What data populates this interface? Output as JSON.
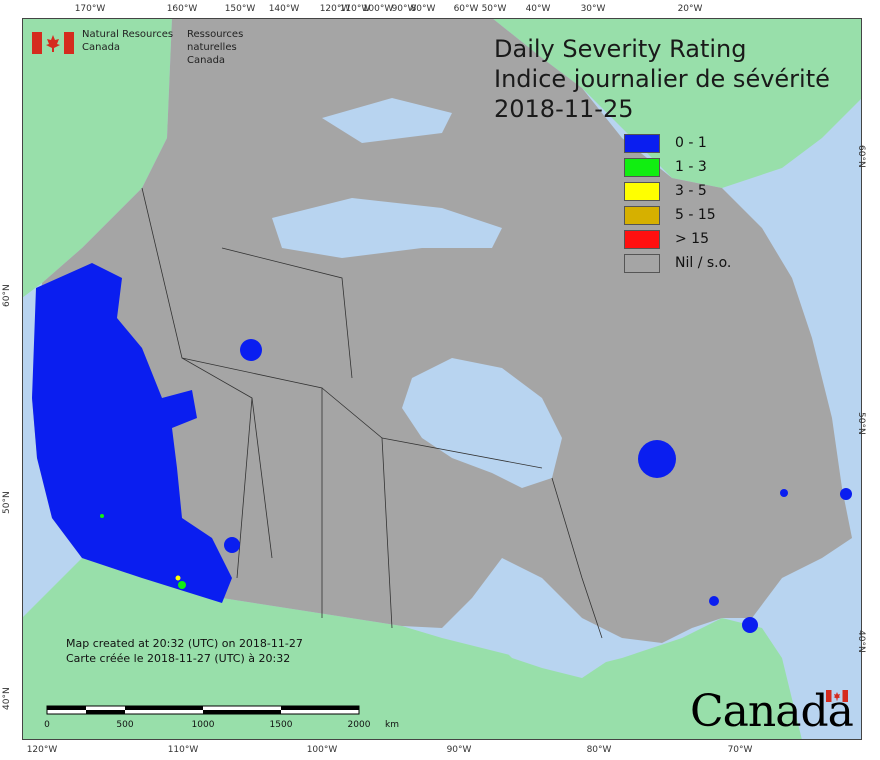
{
  "title": {
    "line1": "Daily Severity Rating",
    "line2": "Indice journalier de sévérité",
    "date": "2018-11-25"
  },
  "agency": {
    "en_line1": "Natural Resources",
    "en_line2": "Canada",
    "fr_line1": "Ressources naturelles",
    "fr_line2": "Canada"
  },
  "legend": [
    {
      "label": "0 - 1",
      "color": "#0a1ef0"
    },
    {
      "label": "1 - 3",
      "color": "#11ee11"
    },
    {
      "label": "3 - 5",
      "color": "#ffff00"
    },
    {
      "label": "5 - 15",
      "color": "#d6b000"
    },
    {
      "label": "> 15",
      "color": "#ff1010"
    },
    {
      "label": "Nil / s.o.",
      "color": "#a5a5a5"
    }
  ],
  "graticule": {
    "top": [
      "170°W",
      "160°W",
      "150°W",
      "140°W",
      "120°W",
      "110°W",
      "100°W",
      "90°W",
      "80°W",
      "60°W",
      "50°W",
      "40°W",
      "30°W",
      "20°W"
    ],
    "bottom": [
      "120°W",
      "110°W",
      "100°W",
      "90°W",
      "80°W",
      "70°W"
    ],
    "left": [
      "60°N",
      "50°N",
      "40°N"
    ],
    "right": [
      "60°N",
      "50°N",
      "40°N"
    ]
  },
  "credits": {
    "line_en": "Map created at 20:32 (UTC) on 2018-11-27",
    "line_fr": "Carte créée le 2018-11-27 (UTC) à 20:32"
  },
  "scale": {
    "labels": [
      "0",
      "500",
      "1000",
      "1500",
      "2000"
    ],
    "unit": "km"
  },
  "wordmark": "Canada",
  "colors": {
    "ocean": "#b8d4f0",
    "foreign_land": "#98dfaa",
    "canada_land": "#a5a5a5",
    "low_rating": "#0a1ef0"
  }
}
